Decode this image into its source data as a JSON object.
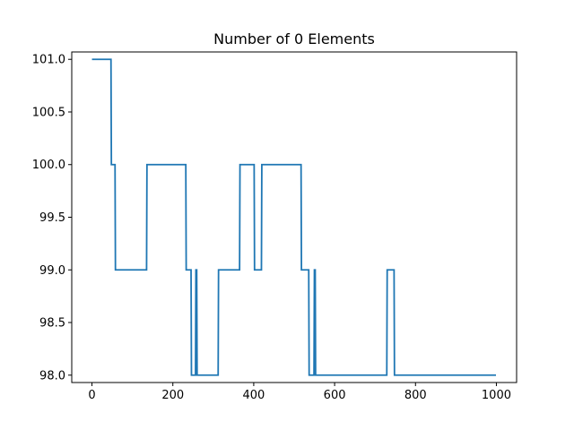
{
  "chart_data": {
    "type": "line",
    "title": "Number of 0 Elements",
    "xlabel": "",
    "ylabel": "",
    "xlim": [
      -50,
      1050
    ],
    "ylim": [
      97.93,
      101.07
    ],
    "xticks": [
      0,
      200,
      400,
      600,
      800,
      1000
    ],
    "xtick_labels": [
      "0",
      "200",
      "400",
      "600",
      "800",
      "1000"
    ],
    "yticks": [
      98.0,
      98.5,
      99.0,
      99.5,
      100.0,
      100.5,
      101.0
    ],
    "ytick_labels": [
      "98.0",
      "98.5",
      "99.0",
      "99.5",
      "100.0",
      "100.5",
      "101.0"
    ],
    "grid": false,
    "line_style": "steps",
    "series": [
      {
        "color": "#1f77b4",
        "x": [
          0,
          47,
          48,
          57,
          58,
          135,
          136,
          232,
          233,
          245,
          246,
          256,
          257,
          259,
          260,
          261,
          262,
          312,
          313,
          365,
          366,
          401,
          402,
          419,
          420,
          517,
          518,
          536,
          537,
          549,
          550,
          552,
          553,
          729,
          730,
          747,
          748,
          999
        ],
        "y": [
          101,
          101,
          100,
          100,
          99,
          99,
          100,
          100,
          99,
          99,
          98,
          98,
          99,
          99,
          98,
          98,
          98,
          98,
          99,
          99,
          100,
          100,
          99,
          99,
          100,
          100,
          99,
          99,
          98,
          98,
          99,
          99,
          98,
          98,
          99,
          99,
          98,
          98
        ]
      }
    ]
  }
}
